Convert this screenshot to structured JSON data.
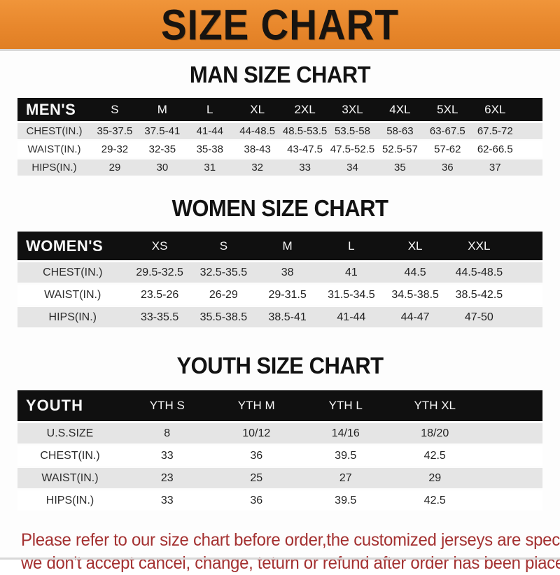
{
  "banner": {
    "title": "SIZE CHART",
    "bg_color": "#E8872C",
    "text_color": "#181410"
  },
  "sections": {
    "men": {
      "heading": "MAN SIZE CHART",
      "table": {
        "header": [
          "MEN'S",
          "S",
          "M",
          "L",
          "XL",
          "2XL",
          "3XL",
          "4XL",
          "5XL",
          "6XL",
          ""
        ],
        "rows": [
          [
            "CHEST(IN.)",
            "35-37.5",
            "37.5-41",
            "41-44",
            "44-48.5",
            "48.5-53.5",
            "53.5-58",
            "58-63",
            "63-67.5",
            "67.5-72",
            ""
          ],
          [
            "WAIST(IN.)",
            "29-32",
            "32-35",
            "35-38",
            "38-43",
            "43-47.5",
            "47.5-52.5",
            "52.5-57",
            "57-62",
            "62-66.5",
            ""
          ],
          [
            "HIPS(IN.)",
            "29",
            "30",
            "31",
            "32",
            "33",
            "34",
            "35",
            "36",
            "37",
            ""
          ]
        ]
      }
    },
    "women": {
      "heading": "WOMEN SIZE CHART",
      "table": {
        "header": [
          "WOMEN'S",
          "XS",
          "S",
          "M",
          "L",
          "XL",
          "XXL",
          ""
        ],
        "rows": [
          [
            "CHEST(IN.)",
            "29.5-32.5",
            "32.5-35.5",
            "38",
            "41",
            "44.5",
            "44.5-48.5",
            ""
          ],
          [
            "WAIST(IN.)",
            "23.5-26",
            "26-29",
            "29-31.5",
            "31.5-34.5",
            "34.5-38.5",
            "38.5-42.5",
            ""
          ],
          [
            "HIPS(IN.)",
            "33-35.5",
            "35.5-38.5",
            "38.5-41",
            "41-44",
            "44-47",
            "47-50",
            ""
          ]
        ]
      }
    },
    "youth": {
      "heading": "YOUTH SIZE CHART",
      "table": {
        "header": [
          "YOUTH",
          "YTH S",
          "YTH M",
          "YTH L",
          "YTH XL",
          ""
        ],
        "rows": [
          [
            "U.S.SIZE",
            "8",
            "10/12",
            "14/16",
            "18/20",
            ""
          ],
          [
            "CHEST(IN.)",
            "33",
            "36",
            "39.5",
            "42.5",
            ""
          ],
          [
            "WAIST(IN.)",
            "23",
            "25",
            "27",
            "29",
            ""
          ],
          [
            "HIPS(IN.)",
            "33",
            "36",
            "39.5",
            "42.5",
            ""
          ]
        ]
      }
    }
  },
  "footer": {
    "line1": "Please refer to our size chart before order,the customized jerseys are special products,",
    "line2": "we don't accept cancel, change, teturn or refund after order has been placed!",
    "text_color": "#A43131"
  },
  "colors": {
    "banner_orange": "#E8872C",
    "header_black": "#101010",
    "row_gray": "#E5E5E5",
    "row_white": "#FFFFFF",
    "notice_red": "#A43131"
  }
}
